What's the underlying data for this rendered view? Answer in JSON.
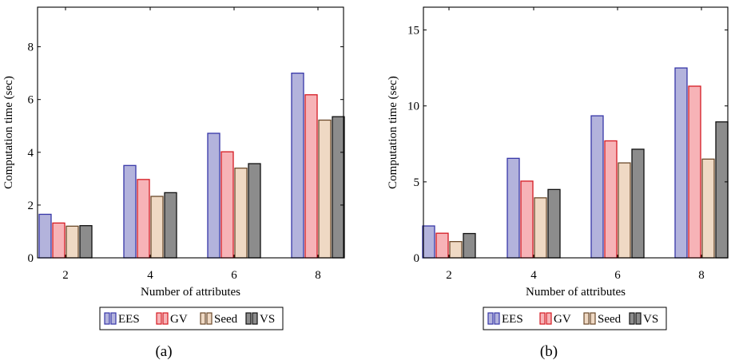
{
  "legend_labels": [
    "EES",
    "GV",
    "Seed",
    "VS"
  ],
  "series_colors": {
    "EES": {
      "fill": "#b3b3dc",
      "stroke": "#3737a8"
    },
    "GV": {
      "fill": "#f7b3b7",
      "stroke": "#d41a22"
    },
    "Seed": {
      "fill": "#efd9c4",
      "stroke": "#6b4a2b"
    },
    "VS": {
      "fill": "#8c8c8c",
      "stroke": "#111111"
    }
  },
  "chart_data": [
    {
      "type": "bar",
      "caption": "(a)",
      "xlabel": "Number of attributes",
      "ylabel": "Computation time (sec)",
      "categories": [
        "2",
        "4",
        "6",
        "8"
      ],
      "yticks": [
        "0",
        "2",
        "4",
        "6",
        "8"
      ],
      "ylim": [
        0,
        9.5
      ],
      "series": [
        {
          "name": "EES",
          "values": [
            1.65,
            3.5,
            4.72,
            7.0
          ]
        },
        {
          "name": "GV",
          "values": [
            1.32,
            2.97,
            4.02,
            6.18
          ]
        },
        {
          "name": "Seed",
          "values": [
            1.2,
            2.33,
            3.4,
            5.22
          ]
        },
        {
          "name": "VS",
          "values": [
            1.22,
            2.47,
            3.57,
            5.35
          ]
        }
      ]
    },
    {
      "type": "bar",
      "caption": "(b)",
      "xlabel": "Number of attributes",
      "ylabel": "Computation time (sec)",
      "categories": [
        "2",
        "4",
        "6",
        "8"
      ],
      "yticks": [
        "0",
        "5",
        "10",
        "15"
      ],
      "ylim": [
        0,
        16.5
      ],
      "series": [
        {
          "name": "EES",
          "values": [
            2.1,
            6.55,
            9.35,
            12.5
          ]
        },
        {
          "name": "GV",
          "values": [
            1.62,
            5.05,
            7.7,
            11.3
          ]
        },
        {
          "name": "Seed",
          "values": [
            1.07,
            3.95,
            6.25,
            6.5
          ]
        },
        {
          "name": "VS",
          "values": [
            1.6,
            4.5,
            7.15,
            8.95
          ]
        }
      ]
    }
  ]
}
